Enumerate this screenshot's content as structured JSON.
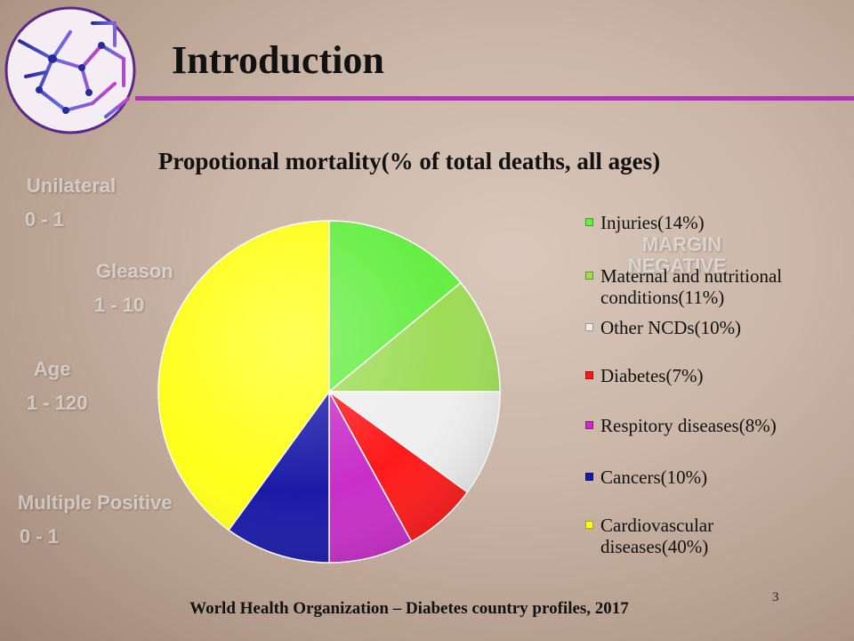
{
  "slide": {
    "title": "Introduction",
    "footer": "World Health Organization – Diabetes country profiles, 2017",
    "page_number": "3",
    "accent_color": "#b032b9"
  },
  "background": {
    "words": [
      "Unilateral",
      "0 - 1",
      "Gleason",
      "1 - 10",
      "Age",
      "1 - 120",
      "Multiple Positive",
      "0 - 1",
      "MARGIN",
      "NEGATIVE"
    ]
  },
  "chart_data": {
    "type": "pie",
    "title": "Propotional mortality(% of total deaths, all ages)",
    "start_angle_deg": 0,
    "direction": "clockwise",
    "legend_position": "right",
    "slices": [
      {
        "label": "Injuries(14%)",
        "value": 14,
        "color": "#66ee44"
      },
      {
        "label": "Maternal and nutritional conditions(11%)",
        "value": 11,
        "color": "#9ddc56"
      },
      {
        "label": "Other NCDs(10%)",
        "value": 10,
        "color": "#eeeeee"
      },
      {
        "label": "Diabetes(7%)",
        "value": 7,
        "color": "#ff1a1a"
      },
      {
        "label": "Respitory diseases(8%)",
        "value": 8,
        "color": "#c82ec8"
      },
      {
        "label": "Cancers(10%)",
        "value": 10,
        "color": "#1a1aa8"
      },
      {
        "label": "Cardiovascular diseases(40%)",
        "value": 40,
        "color": "#ffff1a"
      }
    ]
  }
}
